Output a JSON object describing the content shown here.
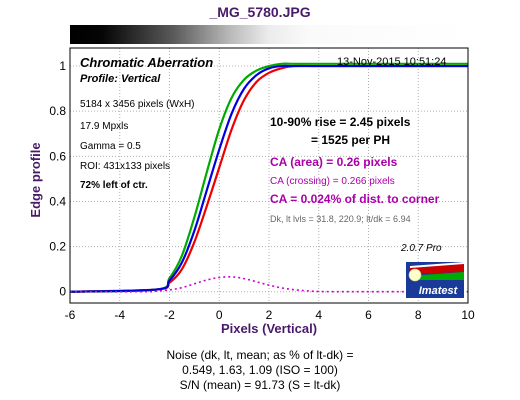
{
  "file_title": "_MG_5780.JPG",
  "chart_data": {
    "type": "line",
    "title": "Chromatic Aberration",
    "subtitle": "Profile: Vertical",
    "timestamp": "13-Nov-2015 10:51:24",
    "xlabel": "Pixels (Vertical)",
    "ylabel": "Edge profile",
    "xlim": [
      -6,
      10
    ],
    "ylim": [
      -0.05,
      1.08
    ],
    "xticks": [
      "-6",
      "-4",
      "-2",
      "0",
      "2",
      "4",
      "6",
      "8",
      "10"
    ],
    "yticks": [
      "0",
      "0.2",
      "0.4",
      "0.6",
      "0.8",
      "1"
    ],
    "grid": true,
    "series": [
      {
        "color": "#ee0000",
        "x": [
          -6,
          -2.5,
          -2,
          -1.5,
          -1,
          -0.5,
          0,
          0.5,
          1,
          1.5,
          2,
          2.5,
          3,
          4,
          6,
          8,
          10
        ],
        "y": [
          0.0,
          0.01,
          0.04,
          0.1,
          0.22,
          0.38,
          0.55,
          0.72,
          0.85,
          0.93,
          0.97,
          0.99,
          1.0,
          1.0,
          1.0,
          1.0,
          1.0
        ]
      },
      {
        "color": "#00aa00",
        "x": [
          -6,
          -2.5,
          -2,
          -1.5,
          -1,
          -0.5,
          0,
          0.5,
          1,
          1.5,
          2,
          2.5,
          3,
          4,
          6,
          8,
          10
        ],
        "y": [
          0.0,
          0.01,
          0.06,
          0.16,
          0.33,
          0.53,
          0.72,
          0.86,
          0.94,
          0.98,
          1.0,
          1.01,
          1.01,
          1.01,
          1.01,
          1.01,
          1.01
        ]
      },
      {
        "color": "#0000dd",
        "x": [
          -6,
          -2.5,
          -2,
          -1.5,
          -1,
          -0.5,
          0,
          0.5,
          1,
          1.5,
          2,
          2.5,
          3,
          4,
          6,
          8,
          10
        ],
        "y": [
          0.0,
          0.01,
          0.05,
          0.13,
          0.27,
          0.45,
          0.63,
          0.79,
          0.9,
          0.96,
          0.99,
          1.0,
          1.0,
          1.0,
          1.0,
          1.0,
          1.0
        ]
      },
      {
        "color": "#cc00cc",
        "dashed": true,
        "x": [
          -6,
          -3,
          -2.5,
          -2,
          -1.5,
          -1,
          -0.5,
          0,
          0.5,
          1,
          1.5,
          2,
          2.5,
          3,
          3.5,
          4,
          5,
          6,
          8,
          10
        ],
        "y": [
          0.0,
          0.0,
          0.003,
          0.008,
          0.018,
          0.035,
          0.052,
          0.063,
          0.066,
          0.058,
          0.044,
          0.029,
          0.017,
          0.009,
          0.004,
          0.001,
          0.0,
          0.0,
          0.0,
          0.0
        ]
      }
    ],
    "annotations": {
      "rise": "10-90% rise = 2.45 pixels",
      "per_ph": "= 1525 per PH",
      "ca_area": "CA (area) = 0.26 pixels",
      "ca_crossing": "CA (crossing) = 0.266 pixels",
      "ca_corner": "CA = 0.024% of dist. to corner",
      "levels": "Dk, lt lvls = 31.8, 220.9;  lt/dk = 6.94"
    },
    "info": {
      "size": "5184 x 3456 pixels (WxH)",
      "mpxls": "17.9 Mpxls",
      "gamma": "Gamma = 0.5",
      "roi": "ROI: 431x133 pixels",
      "position": "72% left of ctr."
    }
  },
  "version": "2.0.7  Pro",
  "logo_text": "Imatest",
  "noise": {
    "line1": "Noise (dk, lt, mean; as % of lt-dk) =",
    "line2": "0.549,  1.63,  1.09  (ISO = 100)",
    "line3": "S/N (mean) = 91.73  (S = lt-dk)"
  },
  "colors": {
    "title": "#4a1a6a",
    "axis_label": "#4a1a6a",
    "magenta": "#aa00aa"
  }
}
